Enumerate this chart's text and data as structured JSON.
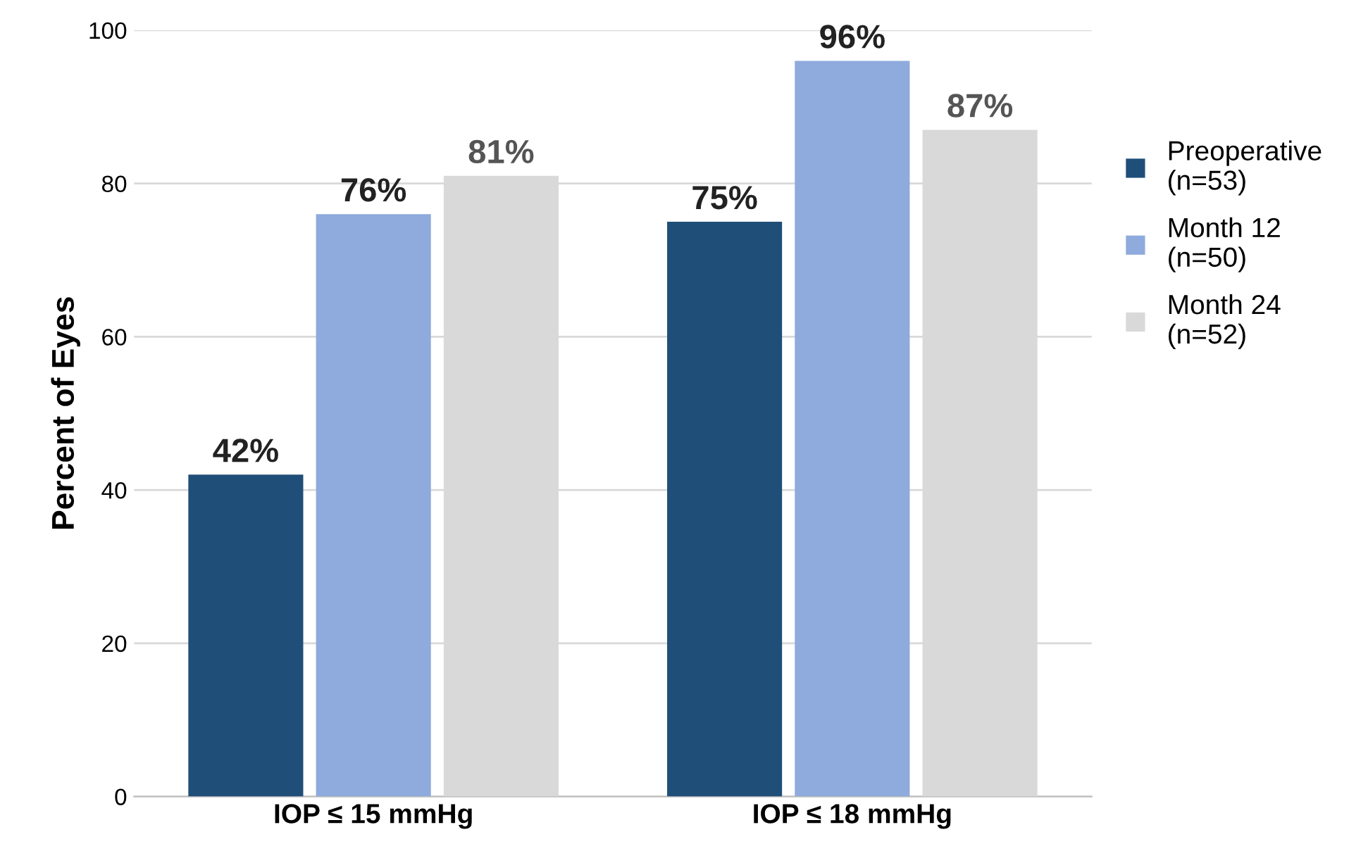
{
  "chart_data": {
    "type": "bar",
    "ylabel": "Percent of Eyes",
    "categories": [
      "IOP ≤ 15 mmHg",
      "IOP ≤ 18 mmHg"
    ],
    "series": [
      {
        "name": "Preoperative\n(n=53)",
        "color": "#1f4e79",
        "values": [
          42,
          75
        ],
        "value_labels": [
          "42%",
          "75%"
        ]
      },
      {
        "name": "Month 12\n(n=50)",
        "color": "#8faadc",
        "values": [
          76,
          96
        ],
        "value_labels": [
          "76%",
          "96%"
        ]
      },
      {
        "name": "Month 24\n(n=52)",
        "color": "#d9d9d9",
        "values": [
          81,
          87
        ],
        "value_labels": [
          "81%",
          "87%"
        ]
      }
    ],
    "ylim": [
      0,
      100
    ],
    "yticks": [
      0,
      20,
      40,
      60,
      80,
      100
    ],
    "grid": "y",
    "legend": "right"
  }
}
